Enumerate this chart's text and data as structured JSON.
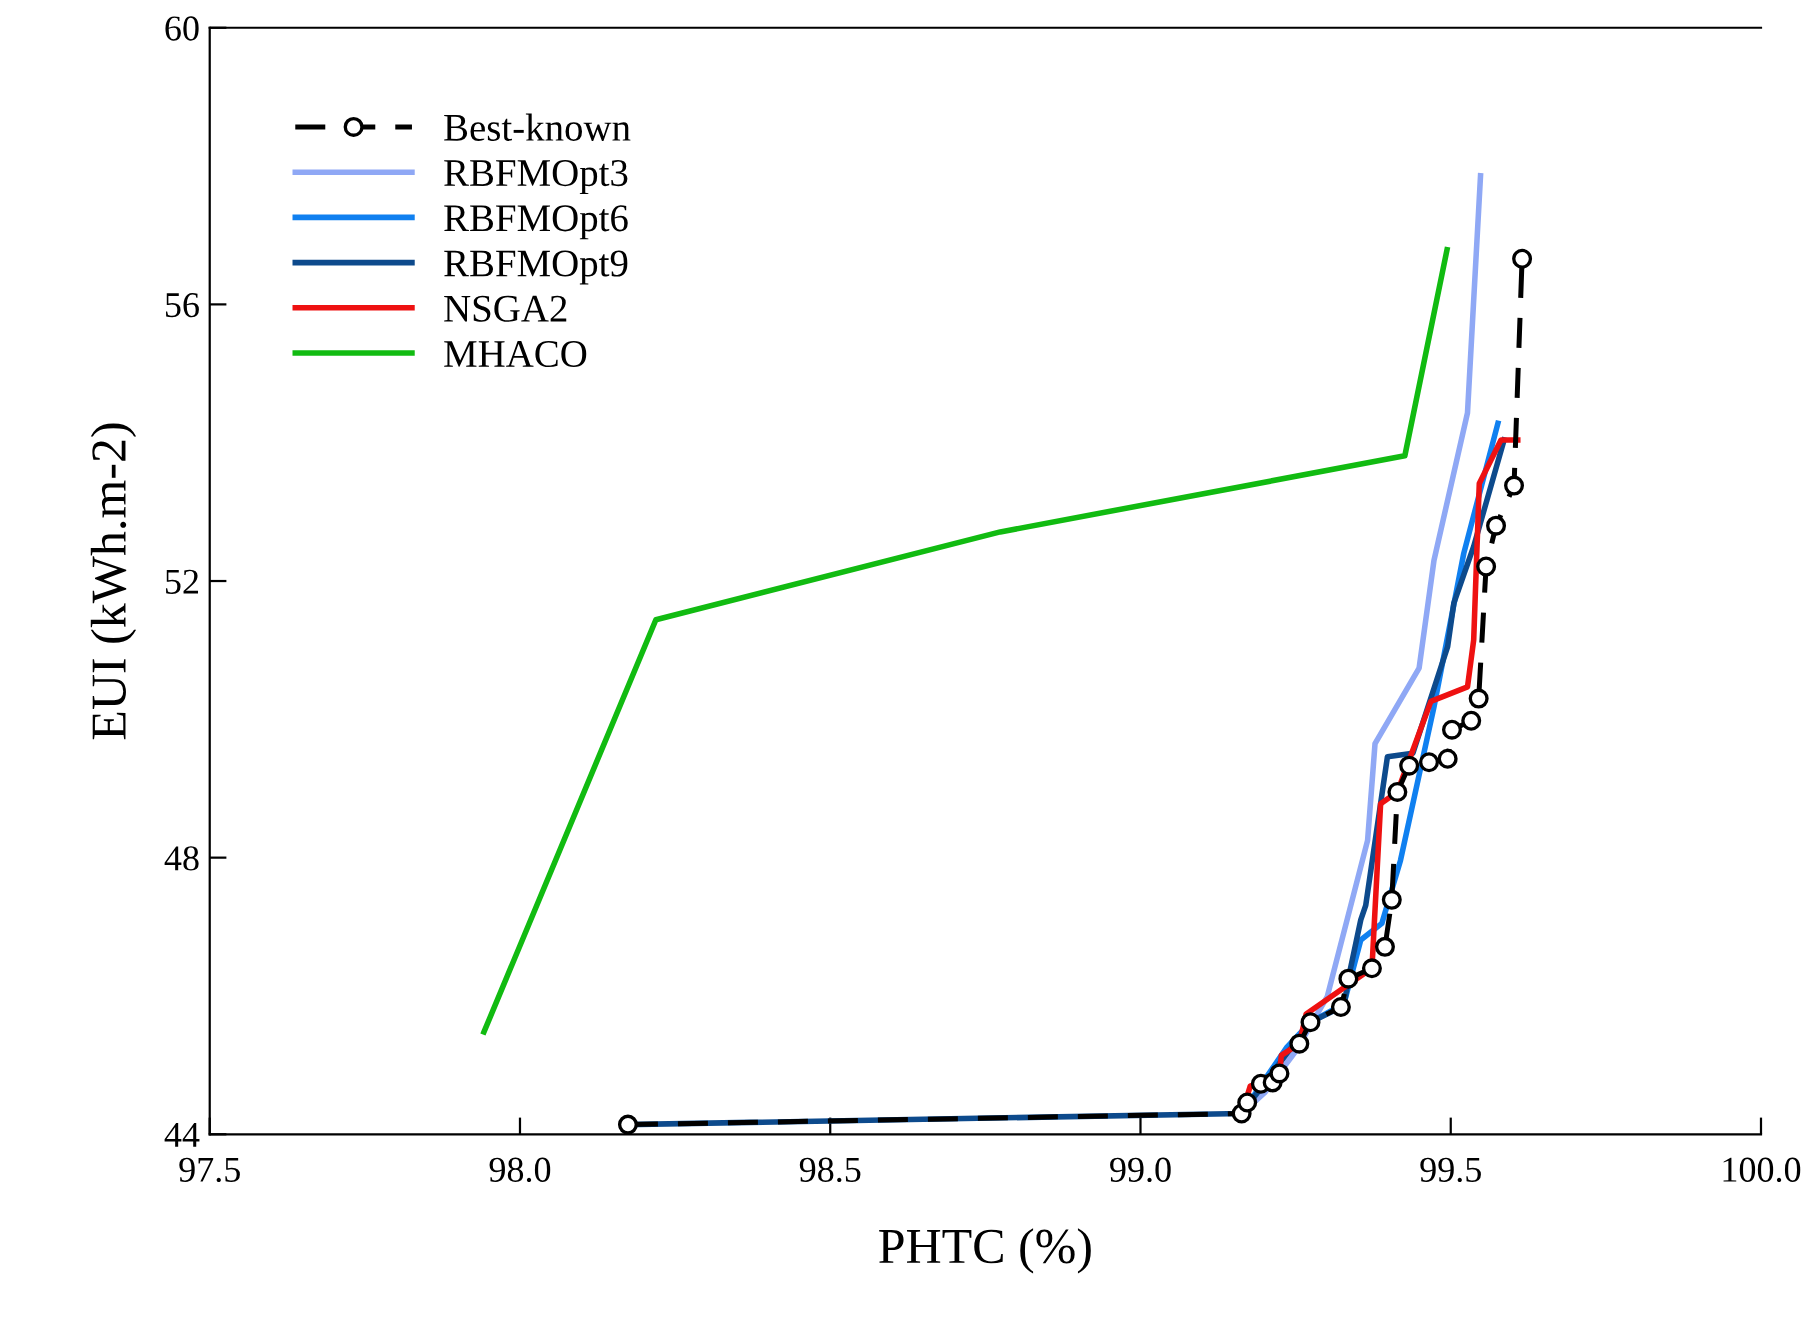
{
  "chart_data": {
    "type": "line",
    "xlabel": "PHTC (%)",
    "ylabel": "EUI (kWh.m-2)",
    "xlim": [
      97.5,
      100.0
    ],
    "xticks": [
      97.5,
      {
        "value": 98.0,
        "label": "98.0"
      },
      98.5,
      {
        "value": 99.0,
        "label": "99.0"
      },
      99.5,
      {
        "value": 100.0,
        "label": "100.0"
      }
    ],
    "ylim": [
      44,
      60
    ],
    "yticks": [
      44,
      48,
      52,
      56,
      60
    ],
    "grid": false,
    "legend": "top left",
    "series": [
      {
        "name": "Best-known",
        "color": "#000000",
        "line_style": "dashed",
        "marker": "circle",
        "x": [
          98.174,
          99.163,
          99.172,
          99.194,
          99.213,
          99.224,
          99.256,
          99.274,
          99.323,
          99.335,
          99.373,
          99.394,
          99.405,
          99.414,
          99.433,
          99.465,
          99.495,
          99.502,
          99.533,
          99.545,
          99.557,
          99.573,
          99.602,
          99.615
        ],
        "values": [
          44.14,
          44.3,
          44.46,
          44.73,
          44.75,
          44.88,
          45.31,
          45.62,
          45.84,
          46.25,
          46.4,
          46.71,
          47.39,
          48.95,
          49.33,
          49.38,
          49.43,
          49.85,
          49.98,
          50.3,
          52.21,
          52.8,
          53.38,
          56.66
        ]
      },
      {
        "name": "RBFMOpt3",
        "color": "#8fa8f5",
        "x": [
          99.163,
          99.2,
          99.25,
          99.301,
          99.366,
          99.378,
          99.449,
          99.473,
          99.527,
          99.548
        ],
        "values": [
          44.3,
          44.6,
          45.2,
          45.99,
          48.25,
          49.65,
          50.74,
          52.3,
          54.43,
          57.86
        ]
      },
      {
        "name": "RBFMOpt6",
        "color": "#1080f0",
        "x": [
          99.163,
          99.236,
          99.274,
          99.328,
          99.355,
          99.389,
          99.419,
          99.473,
          99.521,
          99.576
        ],
        "values": [
          44.3,
          45.26,
          45.62,
          45.89,
          46.81,
          47.05,
          47.96,
          50.18,
          52.4,
          54.28
        ]
      },
      {
        "name": "RBFMOpt9",
        "color": "#0d4a8c",
        "x": [
          98.174,
          99.163,
          99.274,
          99.328,
          99.335,
          99.355,
          99.363,
          99.398,
          99.439,
          99.495,
          99.505,
          99.537,
          99.586
        ],
        "values": [
          44.14,
          44.3,
          45.62,
          45.86,
          46.25,
          47.1,
          47.31,
          49.46,
          49.51,
          51.05,
          51.68,
          52.5,
          54.04
        ]
      },
      {
        "name": "NSGA2",
        "color": "#ee1111",
        "x": [
          99.163,
          99.177,
          99.194,
          99.224,
          99.227,
          99.256,
          99.267,
          99.373,
          99.387,
          99.414,
          99.468,
          99.527,
          99.537,
          99.546,
          99.581,
          99.608
        ],
        "values": [
          44.3,
          44.7,
          44.73,
          44.88,
          45.14,
          45.31,
          45.74,
          46.4,
          48.78,
          48.95,
          50.26,
          50.47,
          51.15,
          53.41,
          54.04,
          54.04
        ]
      },
      {
        "name": "MHACO",
        "color": "#11bb11",
        "x": [
          97.942,
          98.219,
          98.774,
          99.426,
          99.494
        ],
        "values": [
          45.48,
          51.44,
          52.71,
          53.81,
          56.79
        ]
      }
    ]
  }
}
